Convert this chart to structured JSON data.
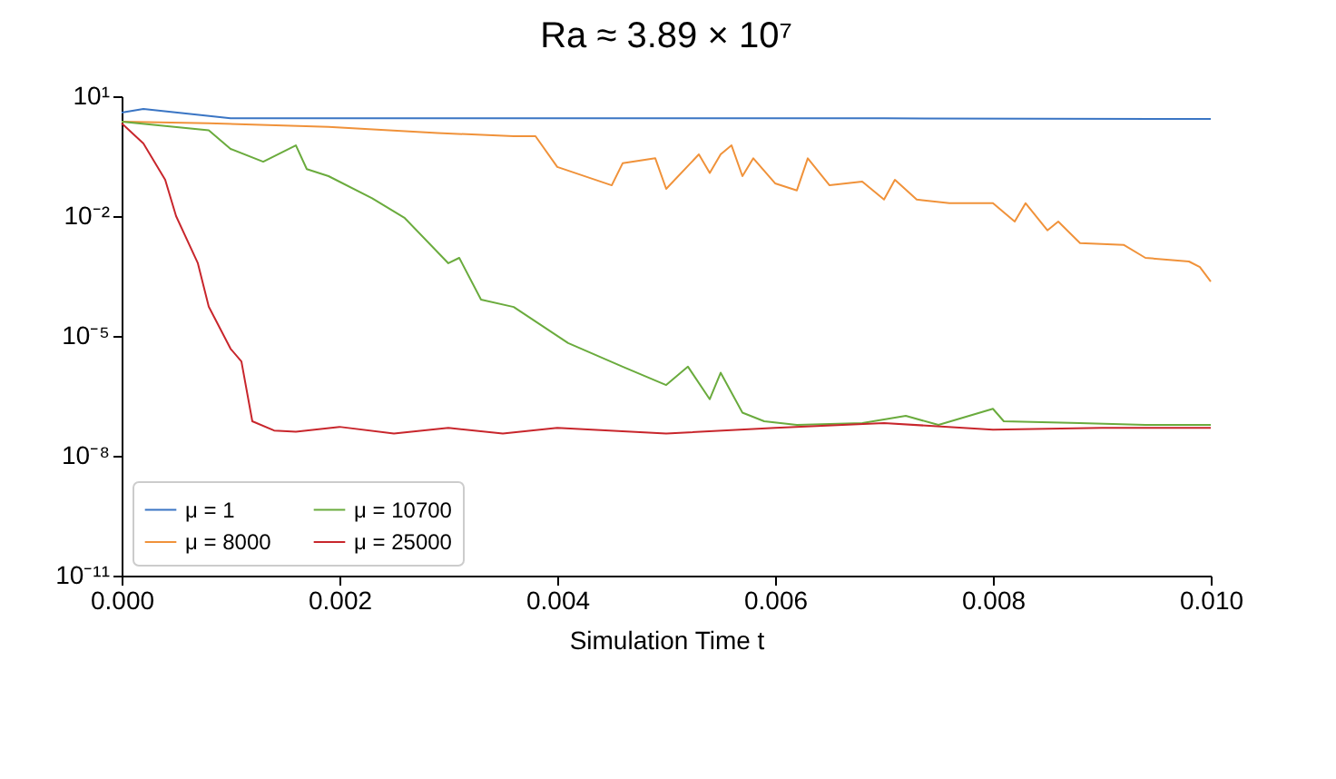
{
  "chart_data": {
    "type": "line",
    "title": "Ra ≈ 3.89 × 10⁷",
    "xlabel": "Simulation Time t",
    "xlim": [
      0,
      0.01
    ],
    "xticks": [
      {
        "value": 0,
        "label": "0.000"
      },
      {
        "value": 0.002,
        "label": "0.002"
      },
      {
        "value": 0.004,
        "label": "0.004"
      },
      {
        "value": 0.006,
        "label": "0.006"
      },
      {
        "value": 0.008,
        "label": "0.008"
      },
      {
        "value": 0.01,
        "label": "0.010"
      }
    ],
    "ylim": [
      1e-11,
      10
    ],
    "yticks": [
      {
        "value": 10,
        "label": "10¹"
      },
      {
        "value": 0.01,
        "label": "10⁻²"
      },
      {
        "value": 1e-05,
        "label": "10⁻⁵"
      },
      {
        "value": 1e-08,
        "label": "10⁻⁸"
      },
      {
        "value": 1e-11,
        "label": "10⁻¹¹"
      }
    ],
    "log": "y",
    "grid": false,
    "legend": "bottom left",
    "line_style": "solid",
    "marker": "none",
    "series": [
      {
        "name": "μ = 1",
        "color": "#3a75c4",
        "x": [
          0,
          0.0002,
          0.001,
          0.003,
          0.005,
          0.007,
          0.01
        ],
        "values": [
          3.9,
          4.8,
          2.8,
          2.8,
          2.8,
          2.8,
          2.7
        ]
      },
      {
        "name": "μ = 8000",
        "color": "#f0923a",
        "x": [
          0,
          0.0008,
          0.0019,
          0.0029,
          0.0036,
          0.0038,
          0.004,
          0.0045,
          0.0046,
          0.0049,
          0.005,
          0.0053,
          0.0054,
          0.0055,
          0.0056,
          0.0057,
          0.0058,
          0.006,
          0.0062,
          0.0063,
          0.0065,
          0.0068,
          0.007,
          0.0071,
          0.0073,
          0.0076,
          0.008,
          0.0082,
          0.0083,
          0.0085,
          0.0086,
          0.0088,
          0.0092,
          0.0094,
          0.0098,
          0.0099,
          0.01
        ],
        "values": [
          2.3,
          2.1,
          1.7,
          1.2,
          1.0,
          1.0,
          0.17,
          0.059,
          0.21,
          0.28,
          0.048,
          0.35,
          0.12,
          0.35,
          0.59,
          0.1,
          0.28,
          0.066,
          0.044,
          0.28,
          0.059,
          0.073,
          0.026,
          0.081,
          0.026,
          0.021,
          0.021,
          0.0073,
          0.021,
          0.0044,
          0.0073,
          0.0021,
          0.0019,
          0.0009,
          0.00073,
          0.00053,
          0.00023
        ]
      },
      {
        "name": "μ = 10700",
        "color": "#6aab3d",
        "x": [
          0,
          0.0008,
          0.001,
          0.0013,
          0.0016,
          0.0017,
          0.0019,
          0.0023,
          0.0026,
          0.003,
          0.0031,
          0.0033,
          0.0036,
          0.0041,
          0.0046,
          0.005,
          0.0052,
          0.0054,
          0.0055,
          0.0057,
          0.0059,
          0.0062,
          0.0068,
          0.0072,
          0.0075,
          0.008,
          0.0081,
          0.0088,
          0.0094,
          0.01
        ],
        "values": [
          2.3,
          1.4,
          0.48,
          0.23,
          0.59,
          0.15,
          0.1,
          0.028,
          0.0089,
          0.00066,
          0.0009,
          8.1e-05,
          5.3e-05,
          6.6e-06,
          1.7e-06,
          5.9e-07,
          1.7e-06,
          2.6e-07,
          1.2e-06,
          1.2e-07,
          7.3e-08,
          5.9e-08,
          6.6e-08,
          1e-07,
          5.9e-08,
          1.5e-07,
          7.3e-08,
          6.6e-08,
          5.9e-08,
          5.9e-08
        ]
      },
      {
        "name": "μ = 25000",
        "color": "#c8262c",
        "x": [
          0,
          0.0002,
          0.0004,
          0.0005,
          0.0007,
          0.0008,
          0.001,
          0.0011,
          0.0012,
          0.0014,
          0.0016,
          0.002,
          0.0025,
          0.003,
          0.0035,
          0.004,
          0.005,
          0.006,
          0.007,
          0.008,
          0.009,
          0.01
        ],
        "values": [
          2.1,
          0.66,
          0.081,
          0.01,
          0.00066,
          5.4e-05,
          4.8e-06,
          2.3e-06,
          7.3e-08,
          4.3e-08,
          4e-08,
          5.3e-08,
          3.6e-08,
          5e-08,
          3.6e-08,
          5e-08,
          3.6e-08,
          5e-08,
          6.6e-08,
          4.5e-08,
          5e-08,
          5e-08
        ]
      }
    ]
  }
}
